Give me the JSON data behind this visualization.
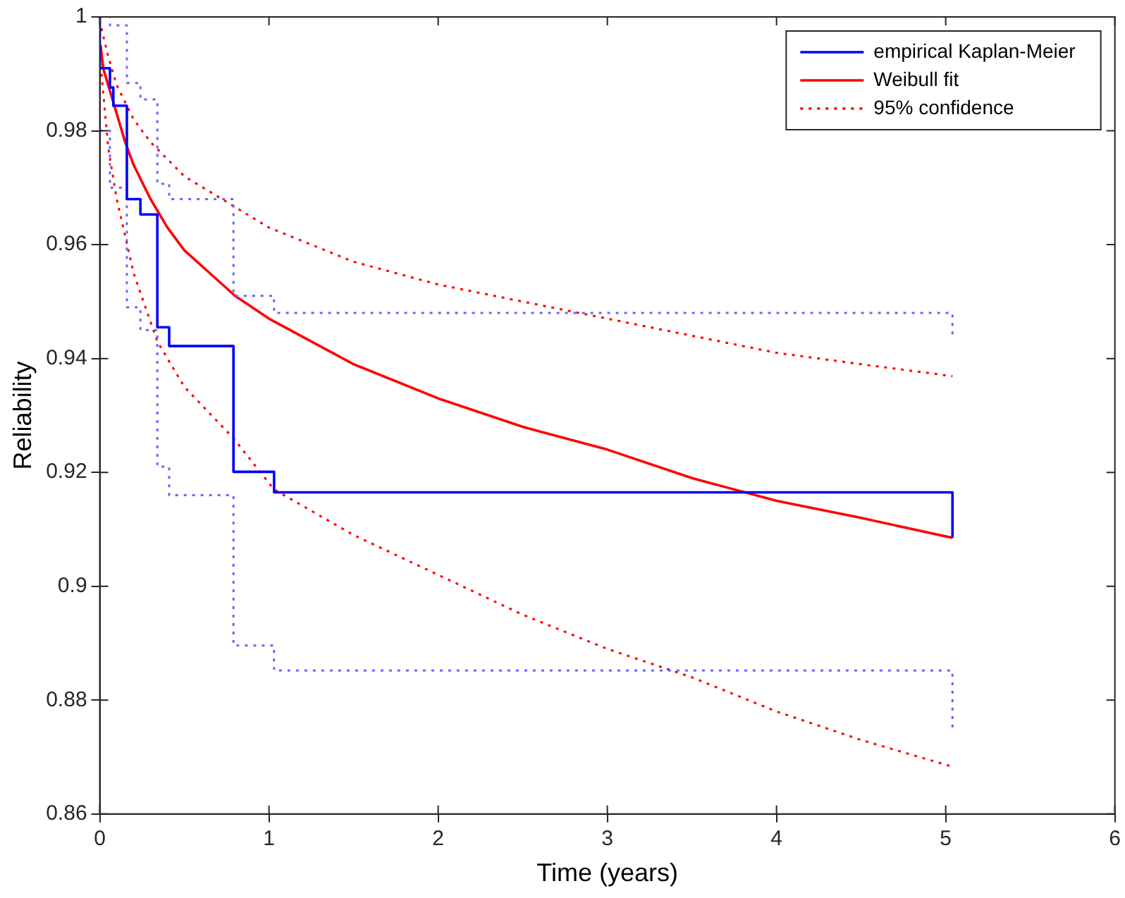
{
  "chart_data": {
    "type": "line",
    "xlabel": "Time (years)",
    "ylabel": "Reliability",
    "xlim": [
      0,
      6
    ],
    "xticks": [
      0,
      1,
      2,
      3,
      4,
      5,
      6
    ],
    "ylim": [
      0.86,
      1
    ],
    "yticks": [
      0.86,
      0.88,
      0.9,
      0.92,
      0.94,
      0.96,
      0.98,
      1
    ],
    "grid": false,
    "legend": "top right",
    "marker": "none",
    "series": [
      {
        "name": "empirical Kaplan-Meier",
        "type": "step",
        "color": "#0000ff",
        "line_style": "solid",
        "x": [
          0,
          0,
          0.06,
          0.08,
          0.16,
          0.24,
          0.34,
          0.41,
          0.79,
          1.03,
          5.04,
          5.04
        ],
        "values": [
          1,
          0.991,
          0.9876,
          0.9844,
          0.968,
          0.9653,
          0.9455,
          0.9422,
          0.9201,
          0.9165,
          0.9165,
          0.9085
        ]
      },
      {
        "type": "step",
        "color": "#6666ff",
        "line_style": "dotted",
        "x": [
          0,
          0.06,
          0.16,
          0.24,
          0.34,
          0.41,
          0.79,
          1.03,
          5.04,
          5.04
        ],
        "values": [
          1,
          0.9985,
          0.9884,
          0.9855,
          0.9707,
          0.968,
          0.951,
          0.948,
          0.948,
          0.944
        ]
      },
      {
        "type": "step",
        "color": "#6666ff",
        "line_style": "dotted",
        "x": [
          0,
          0.06,
          0.16,
          0.24,
          0.34,
          0.41,
          0.79,
          1.03,
          5.04,
          5.04
        ],
        "values": [
          0.98,
          0.97,
          0.949,
          0.945,
          0.921,
          0.916,
          0.8896,
          0.8852,
          0.8852,
          0.8744
        ]
      },
      {
        "name": "Weibull fit",
        "color": "#ff0000",
        "line_style": "solid",
        "x": [
          0.005,
          0.02,
          0.05,
          0.1,
          0.15,
          0.2,
          0.3,
          0.4,
          0.5,
          0.65,
          0.8,
          1,
          1.25,
          1.5,
          2,
          2.5,
          3,
          3.5,
          4,
          4.5,
          5.04
        ],
        "values": [
          0.995,
          0.991,
          0.988,
          0.983,
          0.978,
          0.974,
          0.968,
          0.963,
          0.959,
          0.955,
          0.951,
          0.947,
          0.943,
          0.939,
          0.933,
          0.928,
          0.924,
          0.919,
          0.915,
          0.912,
          0.9085
        ]
      },
      {
        "name": "95% confidence",
        "color": "#ff0000",
        "line_style": "dotted",
        "x": [
          0.01,
          0.05,
          0.1,
          0.2,
          0.3,
          0.5,
          1,
          1.5,
          2,
          2.5,
          3,
          3.5,
          4,
          4.5,
          5.04
        ],
        "values": [
          0.998,
          0.993,
          0.988,
          0.982,
          0.978,
          0.972,
          0.963,
          0.957,
          0.953,
          0.95,
          0.947,
          0.944,
          0.941,
          0.939,
          0.9369
        ]
      },
      {
        "color": "#ff0000",
        "line_style": "dotted",
        "x": [
          0.01,
          0.05,
          0.1,
          0.2,
          0.34,
          0.5,
          0.79,
          1.03,
          1.5,
          2,
          2.5,
          3,
          3.5,
          4,
          4.5,
          5.04
        ],
        "values": [
          0.99,
          0.977,
          0.968,
          0.955,
          0.943,
          0.935,
          0.926,
          0.917,
          0.909,
          0.902,
          0.895,
          0.889,
          0.884,
          0.878,
          0.873,
          0.8683
        ]
      }
    ]
  }
}
